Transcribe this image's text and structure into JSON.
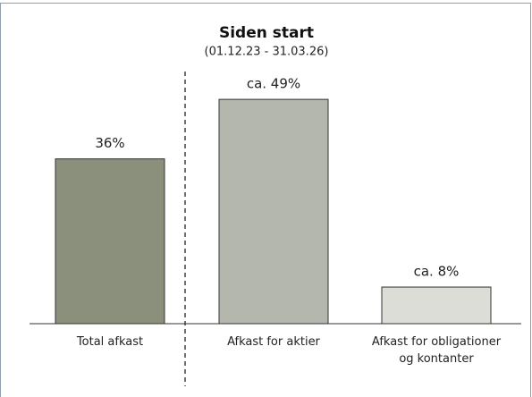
{
  "chart_data": {
    "type": "bar",
    "title": "Siden start",
    "subtitle": "(01.12.23 - 31.03.26)",
    "categories": [
      "Total afkast",
      "Afkast for aktier",
      "Afkast for obligationer og kontanter"
    ],
    "values": [
      36,
      49,
      8
    ],
    "value_labels": [
      "36%",
      "ca. 49%",
      "ca. 8%"
    ],
    "colors": [
      "#8a907c",
      "#b4b7ad",
      "#dcddd6"
    ]
  }
}
